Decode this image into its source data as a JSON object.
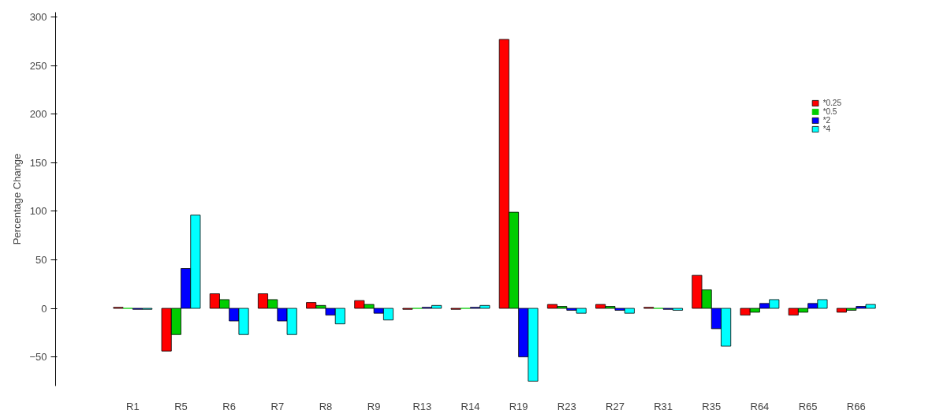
{
  "chart_data": {
    "type": "bar",
    "ylabel": "Percentage Change",
    "categories": [
      "R1",
      "R5",
      "R6",
      "R7",
      "R8",
      "R9",
      "R13",
      "R14",
      "R19",
      "R23",
      "R27",
      "R31",
      "R35",
      "R64",
      "R65",
      "R66"
    ],
    "series": [
      {
        "name": "*0.25",
        "color": "#ff0000",
        "values": [
          1,
          -44,
          15,
          15,
          6,
          8,
          -1,
          -1,
          277,
          4,
          4,
          1,
          34,
          -7,
          -7,
          -4
        ]
      },
      {
        "name": "*0.5",
        "color": "#00cd00",
        "values": [
          0,
          -27,
          9,
          9,
          3,
          4,
          0,
          0,
          99,
          2,
          2,
          0,
          19,
          -4,
          -4,
          -2
        ]
      },
      {
        "name": "*2",
        "color": "#0000ff",
        "values": [
          -1,
          41,
          -13,
          -13,
          -7,
          -5,
          1,
          1,
          -50,
          -2,
          -2,
          -1,
          -21,
          5,
          5,
          2
        ]
      },
      {
        "name": "*4",
        "color": "#00ffff",
        "values": [
          -1,
          96,
          -27,
          -27,
          -16,
          -12,
          3,
          3,
          -75,
          -5,
          -5,
          -2,
          -39,
          9,
          9,
          4
        ]
      }
    ],
    "ylim": [
      -80,
      305
    ],
    "yticks": [
      -50,
      0,
      50,
      100,
      150,
      200,
      250,
      300
    ],
    "grid": false,
    "legend": "right"
  }
}
